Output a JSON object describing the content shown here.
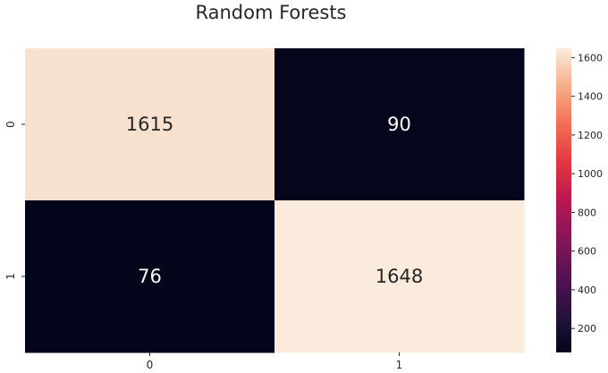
{
  "chart_data": {
    "type": "heatmap",
    "title": "Random Forests",
    "xlabel": "",
    "ylabel": "",
    "x_categories": [
      "0",
      "1"
    ],
    "y_categories": [
      "0",
      "1"
    ],
    "values": [
      [
        1615,
        90
      ],
      [
        76,
        1648
      ]
    ],
    "colormap": "rocket",
    "colorbar": {
      "min": 76,
      "max": 1648,
      "ticks": [
        200,
        400,
        600,
        800,
        1000,
        1200,
        1400,
        1600
      ]
    },
    "grid": false,
    "legend": "colorbar-right"
  }
}
